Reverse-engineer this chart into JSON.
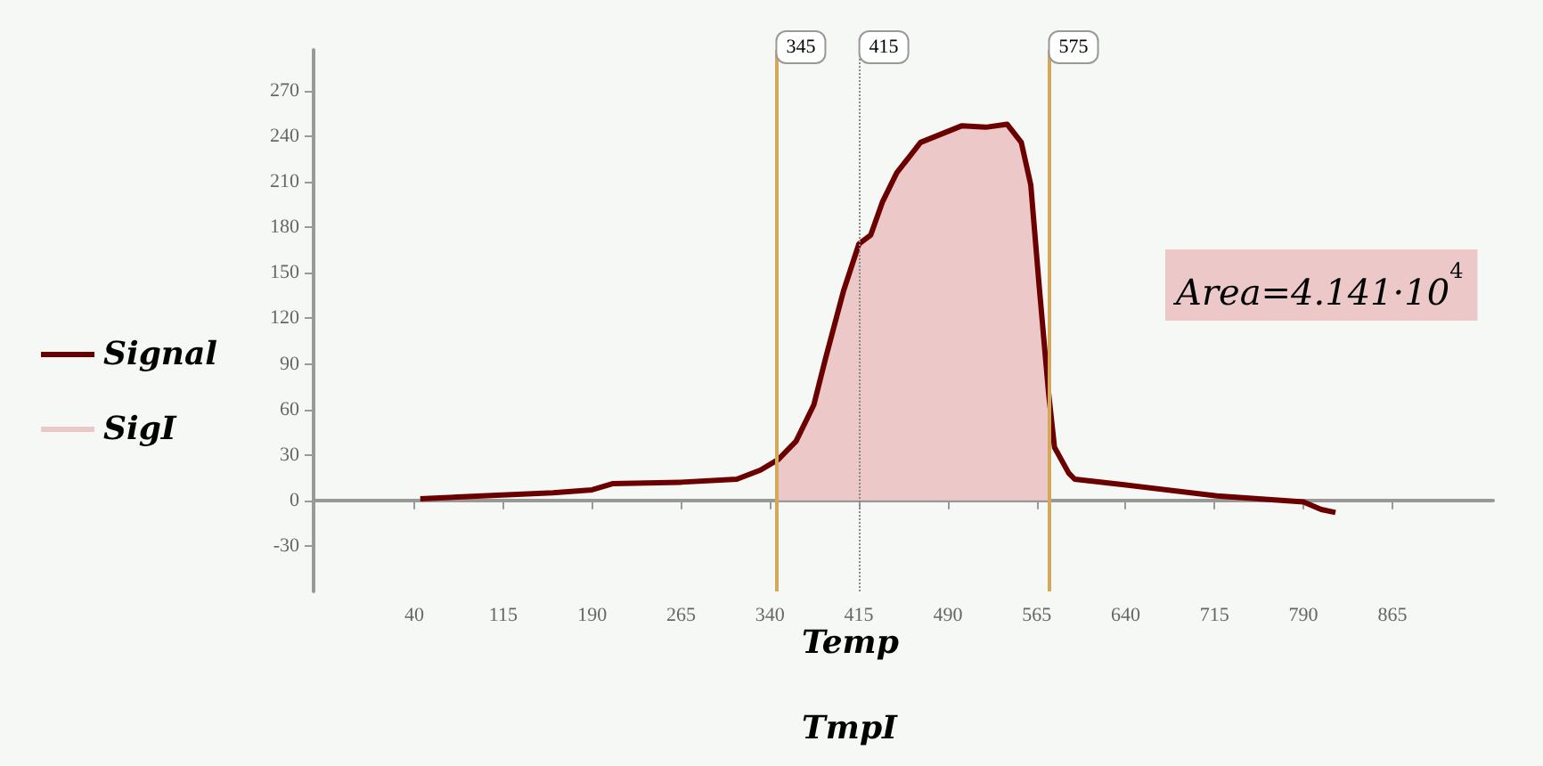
{
  "chart_data": {
    "type": "line",
    "xlabel": "Temp",
    "annotations": [
      "Area=4.141·10$^{4}$",
      "TmpI"
    ],
    "series": [
      {
        "name": "Signal",
        "color": "#6b0000",
        "x": [
          45,
          97,
          157,
          190,
          207,
          265,
          312,
          332,
          347,
          362,
          377,
          387,
          402,
          415,
          425,
          435,
          447,
          467,
          502,
          522,
          540,
          552,
          560,
          567,
          575,
          580,
          592,
          597,
          642,
          717,
          790,
          805,
          817
        ],
        "values": [
          1,
          3,
          5,
          7,
          11,
          12,
          14,
          20,
          27,
          39,
          63,
          94,
          138,
          169,
          175,
          197,
          216,
          236,
          247,
          246,
          248,
          236,
          208,
          142,
          71,
          35,
          18,
          14,
          10,
          3,
          -1,
          -6,
          -8
        ]
      },
      {
        "name": "SigI",
        "type": "area",
        "color": "#ecc8c8",
        "x": [
          347,
          362,
          377,
          387,
          402,
          415,
          425,
          435,
          447,
          467,
          502,
          522,
          540,
          552,
          560,
          567,
          575
        ],
        "values": [
          27,
          39,
          63,
          94,
          138,
          169,
          175,
          197,
          216,
          236,
          247,
          246,
          248,
          236,
          208,
          142,
          71
        ]
      }
    ],
    "xlim": [
      -45,
      950
    ],
    "xticks": [
      40,
      115,
      190,
      265,
      340,
      415,
      490,
      565,
      640,
      715,
      790,
      865
    ],
    "ylim": [
      -60,
      297
    ],
    "yticks": [
      -30,
      0,
      30,
      60,
      90,
      120,
      150,
      180,
      210,
      240,
      270
    ],
    "ref_lines": [
      {
        "axis": "x",
        "value": 345,
        "label": "345",
        "color": "#d4a85a",
        "line_style": "solid"
      },
      {
        "axis": "x",
        "value": 415,
        "label": "415",
        "color": "#888888",
        "line_style": "dotted"
      },
      {
        "axis": "x",
        "value": 575,
        "label": "575",
        "color": "#d4a85a",
        "line_style": "solid"
      }
    ],
    "legend": "left",
    "grid": false,
    "marker": "none"
  }
}
